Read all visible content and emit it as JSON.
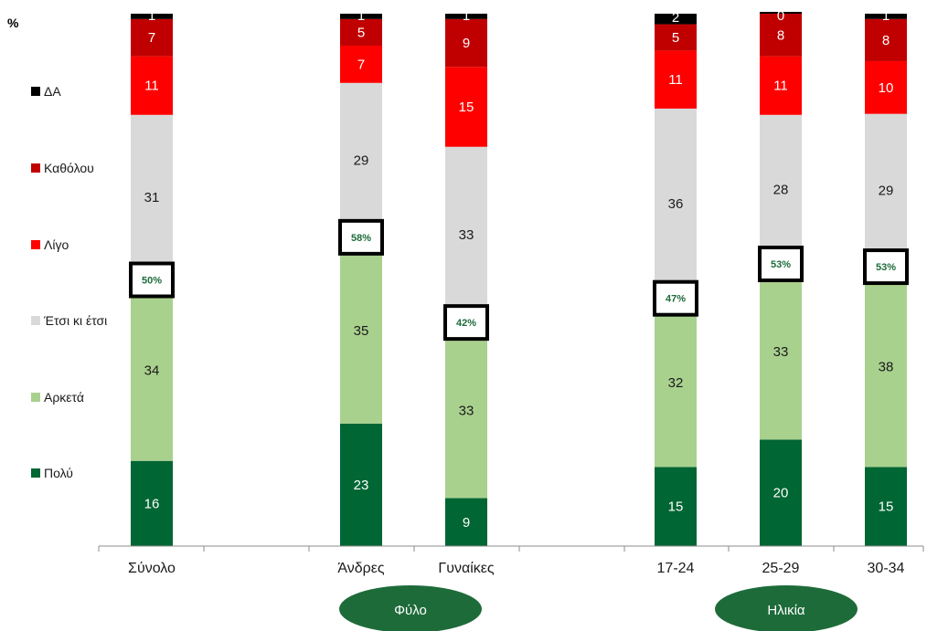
{
  "chart_data": {
    "type": "bar",
    "stacked": true,
    "unit_label": "%",
    "categories": [
      "Σύνολο",
      "Άνδρες",
      "Γυναίκες",
      "17-24",
      "25-29",
      "30-34"
    ],
    "series": [
      {
        "name": "Πολύ",
        "color": "#006633",
        "values": [
          16,
          23,
          9,
          15,
          20,
          15
        ]
      },
      {
        "name": "Αρκετά",
        "color": "#a9d18e",
        "values": [
          34,
          35,
          33,
          32,
          33,
          38
        ]
      },
      {
        "name": "Έτσι κι έτσι",
        "color": "#d9d9d9",
        "values": [
          31,
          29,
          33,
          36,
          28,
          29
        ]
      },
      {
        "name": "Λίγο",
        "color": "#ff0000",
        "values": [
          11,
          7,
          15,
          11,
          11,
          10
        ]
      },
      {
        "name": "Καθόλου",
        "color": "#c00000",
        "values": [
          7,
          5,
          9,
          5,
          8,
          8
        ]
      },
      {
        "name": "ΔΑ",
        "color": "#000000",
        "values": [
          1,
          1,
          1,
          2,
          0,
          1
        ]
      }
    ],
    "annotations": [
      "50%",
      "58%",
      "42%",
      "47%",
      "53%",
      "53%"
    ],
    "groups": [
      {
        "label": "Φύλο"
      },
      {
        "label": "Ηλικία"
      }
    ],
    "legend_position": "left",
    "grid": false
  }
}
